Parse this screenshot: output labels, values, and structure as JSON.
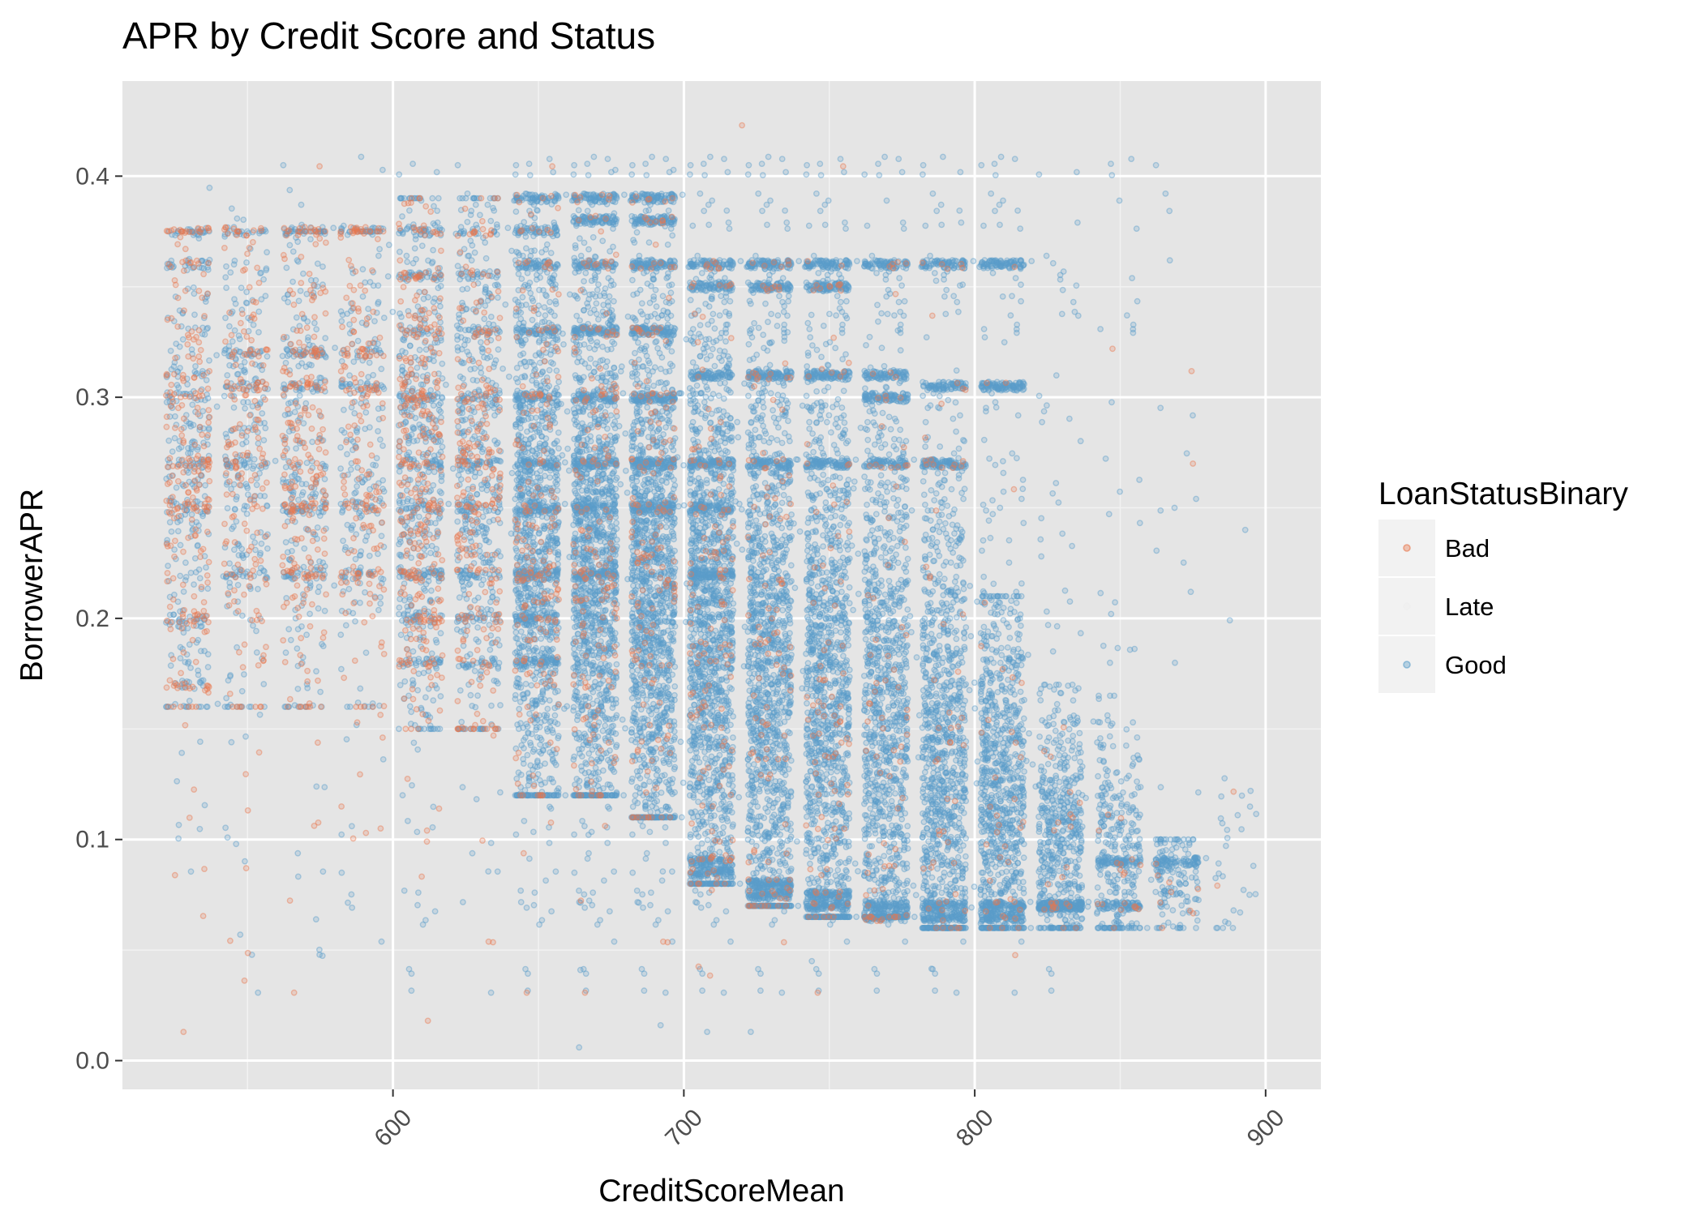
{
  "chart_data": {
    "type": "scatter",
    "title": "APR by Credit Score and Status",
    "xlabel": "CreditScoreMean",
    "ylabel": "BorrowerAPR",
    "xlim": [
      507,
      919
    ],
    "ylim": [
      -0.013,
      0.443
    ],
    "x_ticks": [
      600,
      700,
      800,
      900
    ],
    "x_tick_labels": [
      "600",
      "700",
      "800",
      "900"
    ],
    "y_ticks": [
      0.0,
      0.1,
      0.2,
      0.3,
      0.4
    ],
    "y_tick_labels": [
      "0.0",
      "0.1",
      "0.2",
      "0.3",
      "0.4"
    ],
    "x_minor_ticks": [
      550,
      650,
      750,
      850
    ],
    "y_minor_ticks": [
      0.05,
      0.15,
      0.25,
      0.35
    ],
    "x_tick_label_rotation": -45,
    "grid": true,
    "panel_background": "#e5e5e5",
    "point_opacity": 0.35,
    "jitter_note": "",
    "legend": {
      "title": "LoanStatusBinary",
      "position": "right",
      "entries": [
        {
          "name": "Bad",
          "color": "#e8784e"
        },
        {
          "name": "Late",
          "color": "#eeeeee"
        },
        {
          "name": "Good",
          "color": "#5b9ec9"
        }
      ]
    },
    "clusters": [
      {
        "x": 529.5,
        "good": 380,
        "bad": 260,
        "ymin": 0.16,
        "ymax": 0.375,
        "yc": 0.27,
        "ys": 0.06,
        "bands": [
          0.375,
          0.36,
          0.31,
          0.3,
          0.27,
          0.25,
          0.2,
          0.17
        ]
      },
      {
        "x": 549.5,
        "good": 330,
        "bad": 190,
        "ymin": 0.16,
        "ymax": 0.375,
        "yc": 0.27,
        "ys": 0.06,
        "bands": [
          0.375,
          0.32,
          0.305,
          0.27,
          0.22
        ]
      },
      {
        "x": 569.5,
        "good": 380,
        "bad": 260,
        "ymin": 0.16,
        "ymax": 0.375,
        "yc": 0.27,
        "ys": 0.06,
        "bands": [
          0.375,
          0.32,
          0.305,
          0.25,
          0.22
        ]
      },
      {
        "x": 589.5,
        "good": 300,
        "bad": 200,
        "ymin": 0.16,
        "ymax": 0.375,
        "yc": 0.27,
        "ys": 0.06,
        "bands": [
          0.375,
          0.32,
          0.305,
          0.25,
          0.22
        ]
      },
      {
        "x": 609.5,
        "good": 700,
        "bad": 350,
        "ymin": 0.15,
        "ymax": 0.39,
        "yc": 0.265,
        "ys": 0.065,
        "bands": [
          0.375,
          0.355,
          0.33,
          0.3,
          0.27,
          0.25,
          0.22,
          0.2,
          0.18
        ]
      },
      {
        "x": 629.5,
        "good": 650,
        "bad": 260,
        "ymin": 0.15,
        "ymax": 0.39,
        "yc": 0.26,
        "ys": 0.065,
        "bands": [
          0.375,
          0.355,
          0.33,
          0.3,
          0.27,
          0.25,
          0.22,
          0.2,
          0.18
        ]
      },
      {
        "x": 649.5,
        "good": 1700,
        "bad": 200,
        "ymin": 0.12,
        "ymax": 0.39,
        "yc": 0.23,
        "ys": 0.07,
        "bands": [
          0.39,
          0.375,
          0.36,
          0.33,
          0.3,
          0.27,
          0.25,
          0.22,
          0.2,
          0.18
        ]
      },
      {
        "x": 669.5,
        "good": 2000,
        "bad": 180,
        "ymin": 0.12,
        "ymax": 0.39,
        "yc": 0.22,
        "ys": 0.065,
        "bands": [
          0.39,
          0.38,
          0.36,
          0.33,
          0.3,
          0.27,
          0.25,
          0.22
        ]
      },
      {
        "x": 689.5,
        "good": 2100,
        "bad": 170,
        "ymin": 0.11,
        "ymax": 0.39,
        "yc": 0.21,
        "ys": 0.065,
        "bands": [
          0.39,
          0.38,
          0.36,
          0.33,
          0.3,
          0.27,
          0.25
        ]
      },
      {
        "x": 709.5,
        "good": 2100,
        "bad": 150,
        "ymin": 0.08,
        "ymax": 0.36,
        "yc": 0.19,
        "ys": 0.07,
        "bands": [
          0.36,
          0.35,
          0.31,
          0.27,
          0.25,
          0.22,
          0.09,
          0.085
        ]
      },
      {
        "x": 729.5,
        "good": 1900,
        "bad": 120,
        "ymin": 0.07,
        "ymax": 0.36,
        "yc": 0.17,
        "ys": 0.07,
        "bands": [
          0.36,
          0.35,
          0.31,
          0.27,
          0.08,
          0.075
        ]
      },
      {
        "x": 749.5,
        "good": 1800,
        "bad": 100,
        "ymin": 0.065,
        "ymax": 0.36,
        "yc": 0.16,
        "ys": 0.07,
        "bands": [
          0.36,
          0.35,
          0.31,
          0.27,
          0.075,
          0.07
        ]
      },
      {
        "x": 769.5,
        "good": 1600,
        "bad": 80,
        "ymin": 0.065,
        "ymax": 0.36,
        "yc": 0.15,
        "ys": 0.07,
        "bands": [
          0.36,
          0.31,
          0.3,
          0.27,
          0.07,
          0.065
        ]
      },
      {
        "x": 789.5,
        "good": 1500,
        "bad": 60,
        "ymin": 0.06,
        "ymax": 0.36,
        "yc": 0.13,
        "ys": 0.06,
        "bands": [
          0.36,
          0.305,
          0.27,
          0.07,
          0.065
        ]
      },
      {
        "x": 809.5,
        "good": 1300,
        "bad": 40,
        "ymin": 0.06,
        "ymax": 0.21,
        "yc": 0.12,
        "ys": 0.045,
        "bands": [
          0.36,
          0.305,
          0.07,
          0.065
        ]
      },
      {
        "x": 829.5,
        "good": 800,
        "bad": 25,
        "ymin": 0.06,
        "ymax": 0.17,
        "yc": 0.1,
        "ys": 0.03,
        "bands": [
          0.07
        ]
      },
      {
        "x": 849.5,
        "good": 450,
        "bad": 20,
        "ymin": 0.06,
        "ymax": 0.165,
        "yc": 0.095,
        "ys": 0.03,
        "bands": [
          0.09,
          0.07
        ]
      },
      {
        "x": 869.5,
        "good": 220,
        "bad": 10,
        "ymin": 0.06,
        "ymax": 0.1,
        "yc": 0.08,
        "ys": 0.015,
        "bands": [
          0.09
        ]
      },
      {
        "x": 889.5,
        "good": 30,
        "bad": 2,
        "ymin": 0.06,
        "ymax": 0.14,
        "yc": 0.09,
        "ys": 0.02,
        "bands": []
      }
    ],
    "outlier_points": [
      {
        "x": 720,
        "y": 0.423,
        "status": "Bad"
      },
      {
        "x": 875,
        "y": 0.27,
        "status": "Bad"
      },
      {
        "x": 723,
        "y": 0.013,
        "status": "Good"
      },
      {
        "x": 708,
        "y": 0.013,
        "status": "Good"
      },
      {
        "x": 692,
        "y": 0.016,
        "status": "Good"
      },
      {
        "x": 664,
        "y": 0.006,
        "status": "Good"
      },
      {
        "x": 528,
        "y": 0.013,
        "status": "Bad"
      },
      {
        "x": 612,
        "y": 0.018,
        "status": "Bad"
      },
      {
        "x": 744,
        "y": 0.045,
        "status": "Good"
      },
      {
        "x": 893,
        "y": 0.24,
        "status": "Good"
      }
    ]
  }
}
